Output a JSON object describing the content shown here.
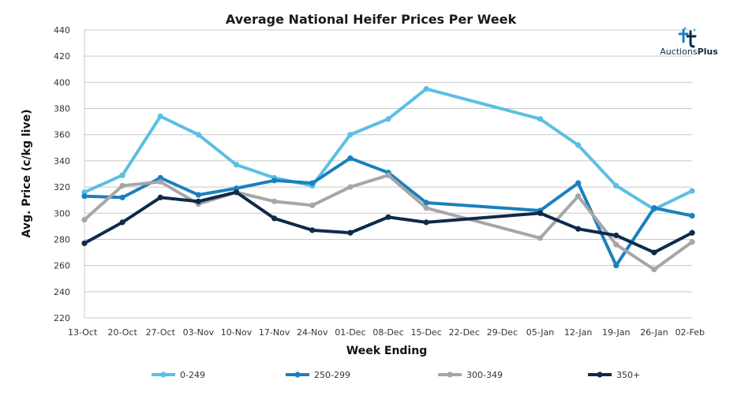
{
  "chart_data": {
    "type": "line",
    "title": "Average National Heifer Prices Per Week",
    "xlabel": "Week Ending",
    "ylabel": "Avg. Price (c/kg live)",
    "ylim": [
      220,
      440
    ],
    "yticks": [
      220,
      240,
      260,
      280,
      300,
      320,
      340,
      360,
      380,
      400,
      420,
      440
    ],
    "grid": "horizontal",
    "legend": "bottom",
    "categories": [
      "13-Oct",
      "20-Oct",
      "27-Oct",
      "03-Nov",
      "10-Nov",
      "17-Nov",
      "24-Nov",
      "01-Dec",
      "08-Dec",
      "15-Dec",
      "22-Dec",
      "29-Dec",
      "05-Jan",
      "12-Jan",
      "19-Jan",
      "26-Jan",
      "02-Feb"
    ],
    "series": [
      {
        "name": "0-249",
        "color": "#5bbfe3",
        "values": [
          316,
          329,
          374,
          360,
          337,
          327,
          321,
          360,
          372,
          395,
          null,
          null,
          372,
          352,
          321,
          303,
          317
        ]
      },
      {
        "name": "250-299",
        "color": "#1a80bf",
        "values": [
          313,
          312,
          327,
          314,
          319,
          325,
          323,
          342,
          331,
          308,
          null,
          null,
          302,
          323,
          260,
          304,
          298
        ]
      },
      {
        "name": "300-349",
        "color": "#a6a6a6",
        "values": [
          295,
          321,
          324,
          307,
          316,
          309,
          306,
          320,
          329,
          304,
          null,
          null,
          281,
          313,
          276,
          257,
          278
        ]
      },
      {
        "name": "350+",
        "color": "#0f2a4a",
        "values": [
          277,
          293,
          312,
          309,
          316,
          296,
          287,
          285,
          297,
          293,
          null,
          null,
          300,
          288,
          283,
          270,
          285
        ]
      }
    ]
  },
  "logo": {
    "text_a": "Auctions",
    "text_b": "Plus"
  }
}
